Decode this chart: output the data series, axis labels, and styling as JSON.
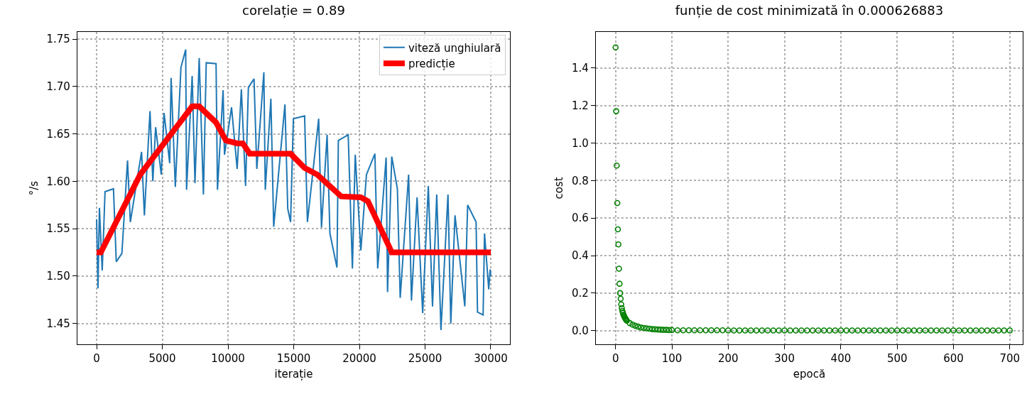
{
  "chart_data": [
    {
      "type": "line",
      "title": "corelație = 0.89",
      "xlabel": "iterație",
      "ylabel": "°/s",
      "legend": "top right",
      "grid": true,
      "xlim": [
        -1460,
        31460
      ],
      "xticks": [
        0,
        5000,
        10000,
        15000,
        20000,
        25000,
        30000
      ],
      "ylim": [
        1.428,
        1.7575
      ],
      "yticks": [
        1.45,
        {
          "value": 1.5,
          "label": "1.50"
        },
        1.55,
        {
          "value": 1.6,
          "label": "1.60"
        },
        1.65,
        {
          "value": 1.7,
          "label": "1.70"
        },
        1.75
      ],
      "series": [
        {
          "name": "viteză unghiulară",
          "color": "#1f77b4",
          "x": [
            0,
            107,
            214,
            428,
            642,
            1284,
            1498,
            1926,
            2353,
            2567,
            3423,
            3637,
            4065,
            4279,
            4493,
            4921,
            5135,
            5563,
            5670,
            5991,
            6419,
            6782,
            6846,
            7274,
            7488,
            7809,
            8130,
            8344,
            9093,
            9200,
            9628,
            9735,
            10270,
            10698,
            11018,
            11339,
            11553,
            11981,
            12195,
            12730,
            12837,
            13265,
            13479,
            14335,
            14549,
            14763,
            14977,
            15832,
            16046,
            16902,
            17116,
            17544,
            17758,
            18293,
            18400,
            19149,
            19470,
            19684,
            20112,
            20539,
            21181,
            21395,
            22037,
            22144,
            22465,
            22893,
            23107,
            23749,
            23963,
            24390,
            24818,
            25246,
            25567,
            25888,
            26209,
            26744,
            26958,
            27279,
            28027,
            28241,
            28883,
            28990,
            29418,
            29525,
            29846,
            29953,
            30000
          ],
          "values": [
            1.56,
            1.487,
            1.572,
            1.506,
            1.589,
            1.592,
            1.515,
            1.524,
            1.622,
            1.557,
            1.631,
            1.564,
            1.674,
            1.6,
            1.657,
            1.607,
            1.672,
            1.619,
            1.709,
            1.594,
            1.72,
            1.739,
            1.591,
            1.711,
            1.598,
            1.73,
            1.586,
            1.725,
            1.724,
            1.591,
            1.696,
            1.628,
            1.678,
            1.613,
            1.697,
            1.595,
            1.699,
            1.708,
            1.613,
            1.715,
            1.591,
            1.687,
            1.552,
            1.681,
            1.571,
            1.557,
            1.666,
            1.669,
            1.557,
            1.666,
            1.551,
            1.649,
            1.545,
            1.509,
            1.643,
            1.649,
            1.508,
            1.628,
            1.527,
            1.607,
            1.629,
            1.508,
            1.625,
            1.483,
            1.626,
            1.592,
            1.477,
            1.607,
            1.474,
            1.583,
            1.461,
            1.595,
            1.468,
            1.586,
            1.443,
            1.586,
            1.45,
            1.564,
            1.468,
            1.575,
            1.557,
            1.462,
            1.459,
            1.545,
            1.486,
            1.507,
            1.5
          ]
        },
        {
          "name": "predicție",
          "color": "#ff0000",
          "x": [
            0,
            320,
            3316,
            7275,
            7810,
            9093,
            9842,
            10697,
            11125,
            11660,
            14763,
            15833,
            16796,
            18615,
            20113,
            20648,
            22465,
            30000
          ],
          "values": [
            1.525,
            1.525,
            1.607,
            1.679,
            1.679,
            1.662,
            1.643,
            1.64,
            1.64,
            1.629,
            1.629,
            1.614,
            1.607,
            1.584,
            1.583,
            1.579,
            1.525,
            1.525
          ]
        }
      ]
    },
    {
      "type": "scatter",
      "title": "funție de cost minimizată în 0.000626883",
      "xlabel": "epocă",
      "ylabel": "cost",
      "grid": true,
      "marker": "circle",
      "xlim": [
        -35,
        723
      ],
      "xticks": [
        0,
        100,
        200,
        300,
        400,
        500,
        600,
        700
      ],
      "ylim": [
        -0.073,
        1.5925
      ],
      "yticks": [
        {
          "value": 0,
          "label": "0.0"
        },
        0.2,
        0.4,
        0.6,
        0.8,
        {
          "value": 1,
          "label": "1.0"
        },
        1.2,
        1.4
      ],
      "series": [
        {
          "color": "#008000",
          "x": [
            0,
            1,
            2,
            3,
            4,
            5,
            6,
            7,
            8,
            9,
            10,
            11,
            12,
            13,
            14,
            15,
            16,
            17,
            18,
            19,
            20,
            25,
            30,
            35,
            40,
            45,
            50,
            55,
            60,
            65,
            70,
            75,
            80,
            85,
            90,
            95,
            100,
            110,
            120,
            130,
            140,
            150,
            160,
            170,
            180,
            190,
            200,
            210,
            220,
            230,
            240,
            250,
            260,
            270,
            280,
            290,
            300,
            310,
            320,
            330,
            340,
            350,
            360,
            370,
            380,
            390,
            400,
            410,
            420,
            430,
            440,
            450,
            460,
            470,
            480,
            490,
            500,
            510,
            520,
            530,
            540,
            550,
            560,
            570,
            580,
            590,
            600,
            610,
            620,
            630,
            640,
            650,
            660,
            670,
            680,
            690,
            700
          ],
          "values": [
            1.51,
            1.17,
            0.88,
            0.68,
            0.54,
            0.46,
            0.33,
            0.25,
            0.2,
            0.17,
            0.14,
            0.12,
            0.105,
            0.095,
            0.085,
            0.078,
            0.072,
            0.066,
            0.061,
            0.057,
            0.053,
            0.04,
            0.032,
            0.026,
            0.021,
            0.017,
            0.014,
            0.012,
            0.01,
            0.008,
            0.007,
            0.006,
            0.005,
            0.004,
            0.004,
            0.003,
            0.003,
            0.002,
            0.002,
            0.002,
            0.002,
            0.002,
            0.002,
            0.002,
            0.002,
            0.002,
            0.001,
            0.001,
            0.001,
            0.001,
            0.001,
            0.001,
            0.001,
            0.001,
            0.001,
            0.001,
            0.001,
            0.001,
            0.001,
            0.001,
            0.001,
            0.001,
            0.001,
            0.001,
            0.001,
            0.001,
            0.001,
            0.001,
            0.001,
            0.001,
            0.001,
            0.001,
            0.001,
            0.001,
            0.001,
            0.001,
            0.001,
            0.001,
            0.001,
            0.001,
            0.001,
            0.001,
            0.001,
            0.001,
            0.001,
            0.001,
            0.001,
            0.001,
            0.001,
            0.001,
            0.001,
            0.001,
            0.001,
            0.001,
            0.001,
            0.001,
            0.001
          ]
        }
      ]
    }
  ]
}
